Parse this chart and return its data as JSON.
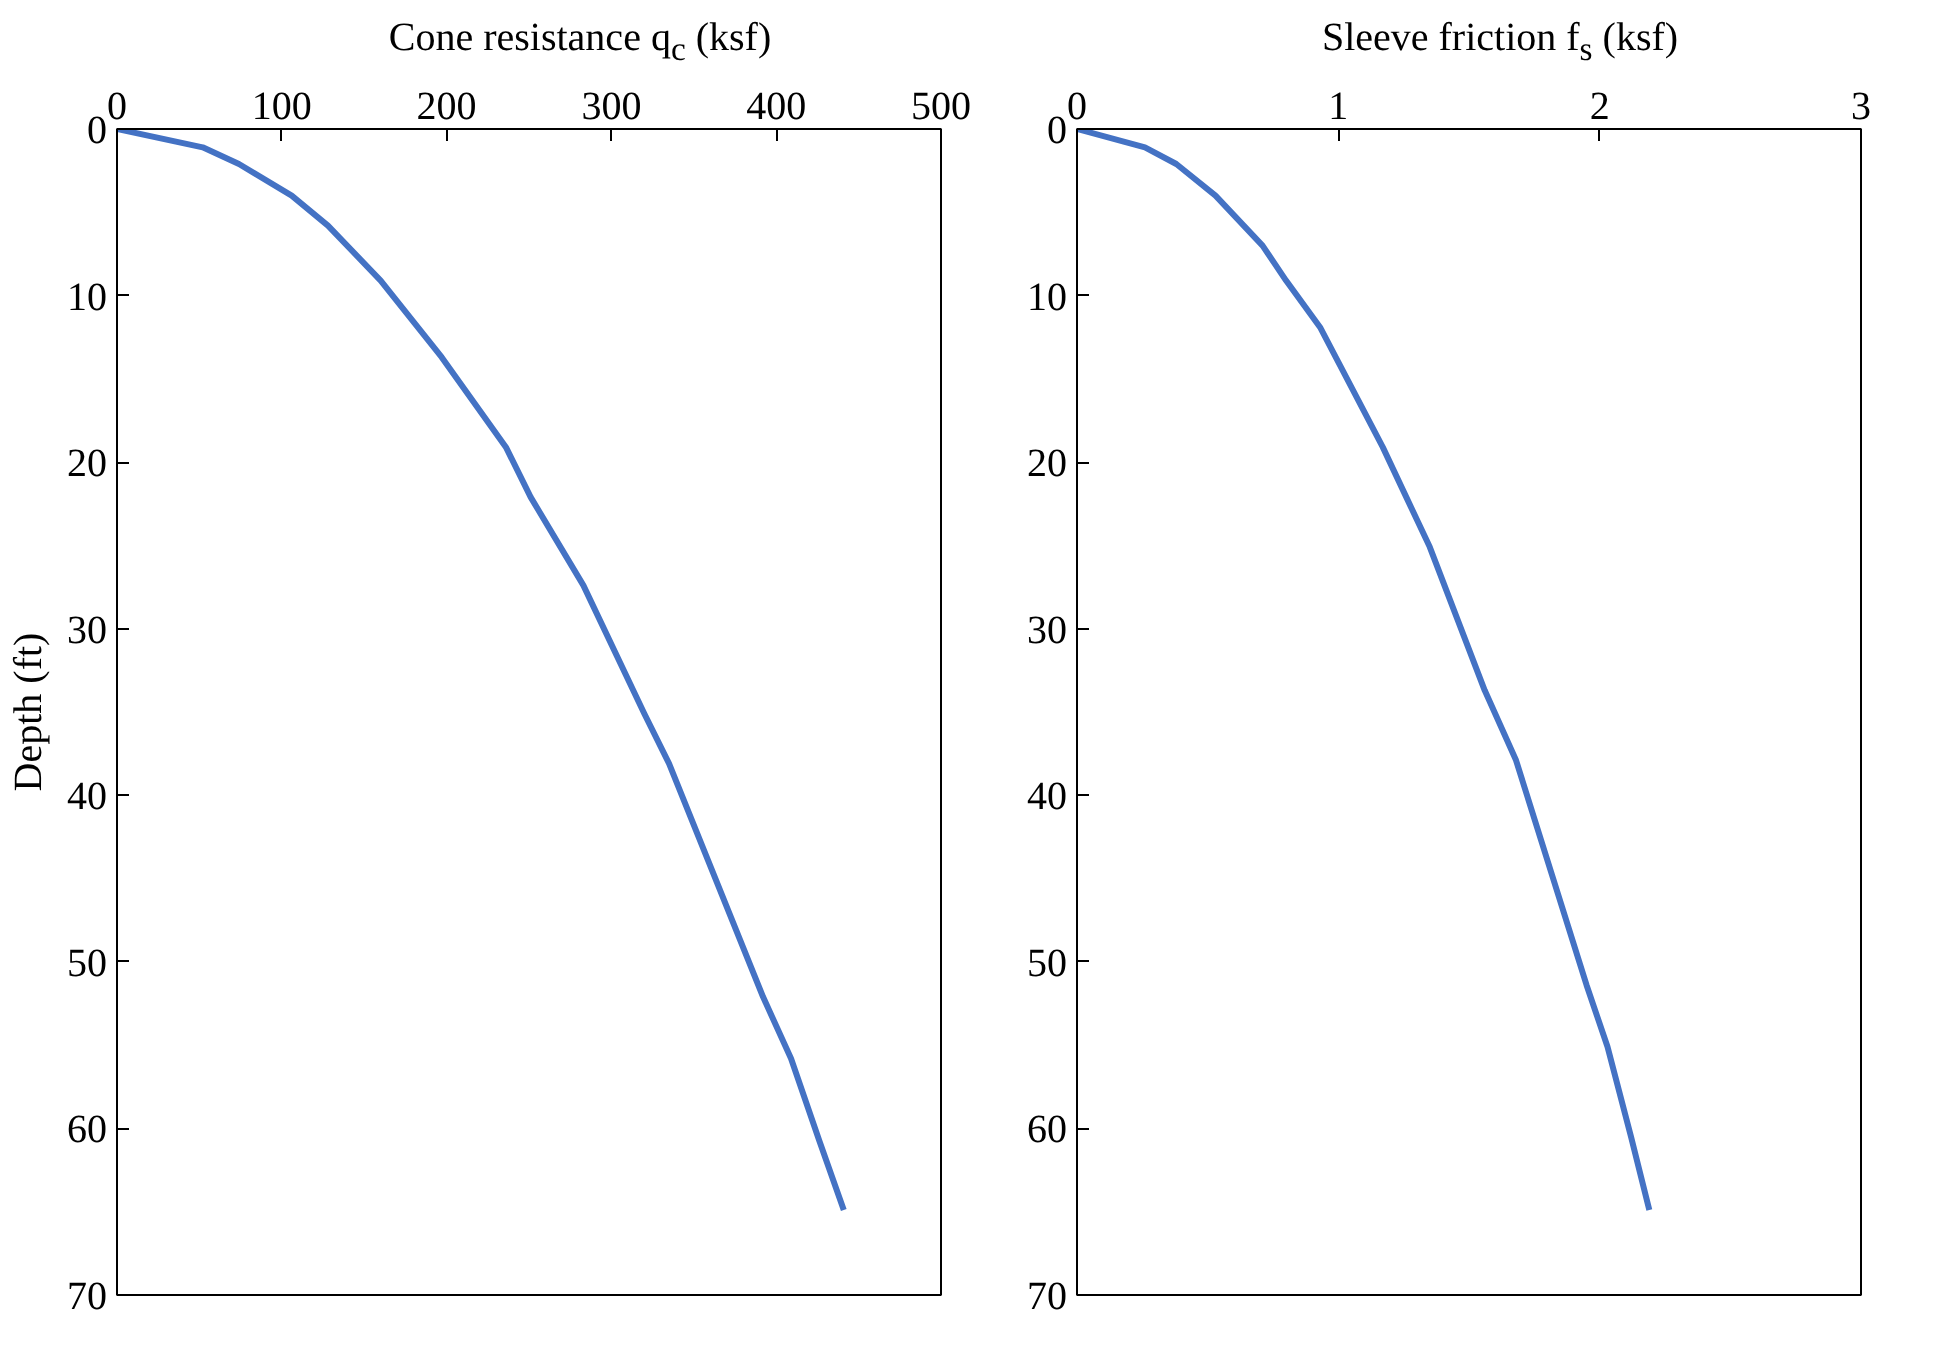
{
  "chart_data": [
    {
      "type": "line",
      "xlabel": "Cone resistance q$_{c}$ (ksf)",
      "ylabel": "Depth (ft)",
      "xlim": [
        0,
        500
      ],
      "xticks": [
        0,
        100,
        200,
        300,
        400,
        500
      ],
      "ylim": [
        70,
        0
      ],
      "yticks": [
        0,
        10,
        20,
        30,
        40,
        50,
        60,
        70
      ],
      "grid": false,
      "series": [
        {
          "color": "#4472c4",
          "x": [
            0,
            52,
            74,
            106,
            128,
            160,
            197,
            236,
            251,
            283,
            320,
            335,
            392,
            409,
            426,
            441
          ],
          "values": [
            0,
            1.1,
            2.1,
            4,
            5.8,
            9.1,
            13.7,
            19.1,
            22.1,
            27.4,
            35.1,
            38.1,
            52.1,
            55.8,
            60.7,
            64.9
          ]
        }
      ]
    },
    {
      "type": "line",
      "xlabel": "Sleeve friction f$_{s}$ (ksf)",
      "xlim": [
        0,
        3
      ],
      "xticks": [
        0,
        1,
        2,
        3
      ],
      "ylim": [
        70,
        0
      ],
      "yticks": [
        0,
        10,
        20,
        30,
        40,
        50,
        60,
        70
      ],
      "grid": false,
      "series": [
        {
          "color": "#4472c4",
          "x": [
            0,
            0.26,
            0.38,
            0.53,
            0.71,
            0.8,
            0.93,
            1.0,
            1.17,
            1.26,
            1.35,
            1.56,
            1.68,
            1.88,
            1.95,
            2.03,
            2.12,
            2.19
          ],
          "values": [
            0,
            1.1,
            2.1,
            4,
            7,
            9.1,
            11.9,
            14,
            19.1,
            22.1,
            25.1,
            33.7,
            37.9,
            47.9,
            51.4,
            55.1,
            60.5,
            64.9
          ]
        }
      ]
    }
  ]
}
